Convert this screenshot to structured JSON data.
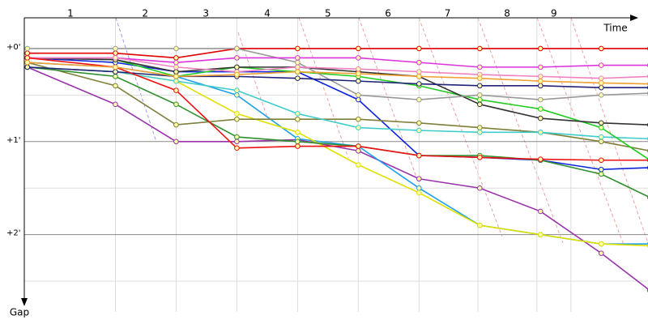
{
  "chart_data": {
    "type": "line",
    "x_label": "Time",
    "y_label": "Gap",
    "xlim": [
      0,
      10.35
    ],
    "ylim": [
      -0.33,
      2.83
    ],
    "xticks": [
      {
        "value": 0.76,
        "label": "1"
      },
      {
        "value": 1.99,
        "label": "2"
      },
      {
        "value": 2.99,
        "label": "3"
      },
      {
        "value": 4.0,
        "label": "4"
      },
      {
        "value": 5.0,
        "label": "5"
      },
      {
        "value": 5.99,
        "label": "6"
      },
      {
        "value": 6.97,
        "label": "7"
      },
      {
        "value": 7.95,
        "label": "8"
      },
      {
        "value": 8.72,
        "label": "9"
      }
    ],
    "yticks": [
      {
        "value": 0,
        "label": "+0'"
      },
      {
        "value": 1,
        "label": "+1'"
      },
      {
        "value": 2,
        "label": "+2'"
      }
    ],
    "minor_yticks": [
      0.5,
      1.5,
      2.5
    ],
    "x_grid": [
      1.5,
      2.5,
      3.5,
      4.5,
      5.5,
      6.5,
      7.47,
      8.44,
      9.0
    ],
    "x": [
      0.05,
      1.5,
      2.5,
      3.5,
      4.5,
      5.5,
      6.5,
      7.5,
      8.5,
      9.5,
      10.3
    ],
    "series": [
      {
        "color": "#e00000",
        "values": [
          0.05,
          0.05,
          0.1,
          0.0,
          0,
          0,
          0,
          0,
          0,
          0,
          0
        ]
      },
      {
        "color": "#9933aa",
        "values": [
          0.2,
          0.6,
          1.0,
          1.0,
          0.98,
          1.1,
          1.4,
          1.5,
          1.75,
          2.2,
          2.6
        ]
      },
      {
        "color": "#1fa0e8",
        "values": [
          0.15,
          0.2,
          0.3,
          0.5,
          0.97,
          1.05,
          1.5,
          1.9,
          2.0,
          2.1,
          2.1
        ]
      },
      {
        "color": "#e0e000",
        "values": [
          0.2,
          0.25,
          0.35,
          0.7,
          0.9,
          1.25,
          1.55,
          1.9,
          2.0,
          2.1,
          2.12
        ]
      },
      {
        "color": "#0a22dd",
        "values": [
          0.1,
          0.15,
          0.25,
          0.25,
          0.25,
          0.55,
          1.15,
          1.17,
          1.2,
          1.3,
          1.28
        ]
      },
      {
        "color": "#7f7f3a",
        "values": [
          0.15,
          0.4,
          0.82,
          0.76,
          0.76,
          0.76,
          0.8,
          0.85,
          0.9,
          1.0,
          1.1
        ]
      },
      {
        "color": "#40cccc",
        "values": [
          0.2,
          0.25,
          0.35,
          0.45,
          0.7,
          0.85,
          0.88,
          0.9,
          0.9,
          0.95,
          0.97
        ]
      },
      {
        "color": "#2f8f2f",
        "values": [
          0.2,
          0.3,
          0.6,
          0.95,
          1.0,
          1.05,
          1.15,
          1.15,
          1.2,
          1.35,
          1.6
        ]
      },
      {
        "color": "#22cc22",
        "values": [
          0.1,
          0.12,
          0.3,
          0.2,
          0.25,
          0.3,
          0.4,
          0.55,
          0.65,
          0.85,
          1.2
        ]
      },
      {
        "color": "#333333",
        "values": [
          0.1,
          0.12,
          0.25,
          0.2,
          0.2,
          0.25,
          0.3,
          0.6,
          0.75,
          0.8,
          0.82
        ]
      },
      {
        "color": "#999999",
        "values": [
          0.0,
          0.0,
          0.0,
          0.0,
          0.15,
          0.5,
          0.55,
          0.5,
          0.55,
          0.5,
          0.48
        ]
      },
      {
        "color": "#222277",
        "values": [
          0.2,
          0.25,
          0.3,
          0.3,
          0.32,
          0.35,
          0.38,
          0.4,
          0.4,
          0.42,
          0.42
        ]
      },
      {
        "color": "#dd33dd",
        "values": [
          0.1,
          0.1,
          0.15,
          0.1,
          0.1,
          0.1,
          0.15,
          0.2,
          0.2,
          0.18,
          0.18
        ]
      },
      {
        "color": "#f080c0",
        "values": [
          0.1,
          0.1,
          0.2,
          0.25,
          0.2,
          0.22,
          0.25,
          0.28,
          0.3,
          0.32,
          0.3
        ]
      },
      {
        "color": "#ee1111",
        "values": [
          0.1,
          0.2,
          0.45,
          1.07,
          1.05,
          1.05,
          1.15,
          1.17,
          1.19,
          1.2,
          1.2
        ]
      },
      {
        "color": "#f0a030",
        "values": [
          0.15,
          0.2,
          0.3,
          0.28,
          0.25,
          0.27,
          0.3,
          0.32,
          0.35,
          0.37,
          0.38
        ]
      }
    ]
  }
}
